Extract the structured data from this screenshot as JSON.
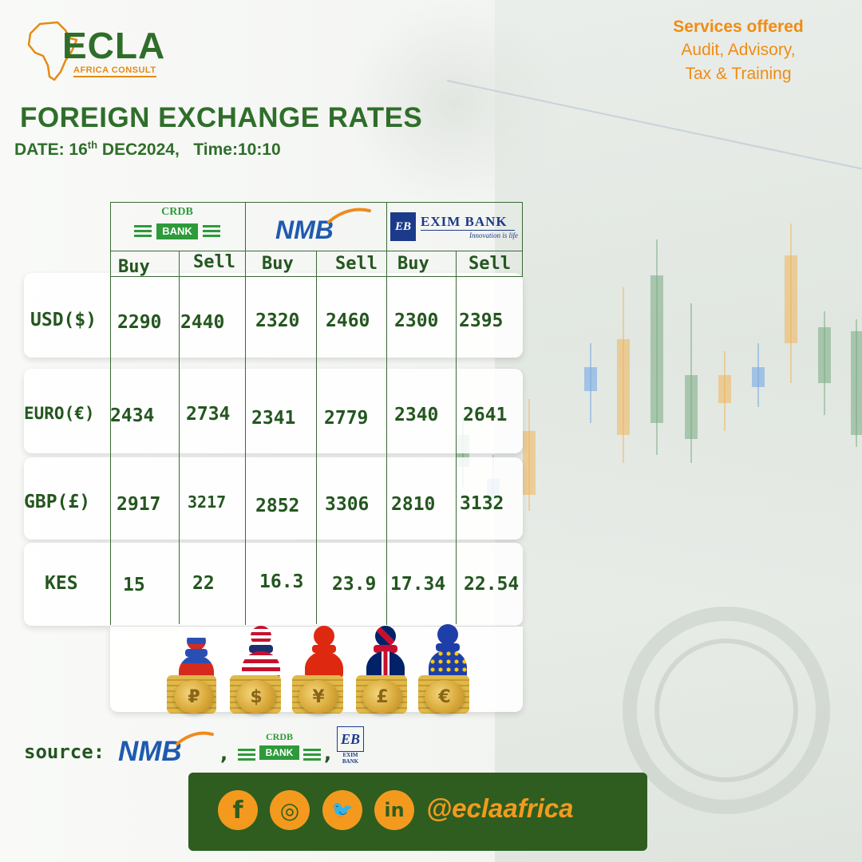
{
  "brand": {
    "logo_text": "ECLA",
    "logo_sub": "AFRICA CONSULT",
    "colors": {
      "green": "#2f6e2a",
      "orange": "#ef8c14"
    }
  },
  "services": {
    "title": "Services offered",
    "line1": "Audit, Advisory,",
    "line2": "Tax & Training"
  },
  "heading": {
    "title": "FOREIGN EXCHANGE RATES",
    "date_prefix": "DATE: 16",
    "date_sup": "th",
    "date_rest": " DEC2024,",
    "time": "Time:10:10"
  },
  "banks": {
    "crdb": {
      "top": "CRDB",
      "mid": "BANK"
    },
    "nmb": {
      "name": "NMB"
    },
    "exim": {
      "mark": "EB",
      "name": "EXIM BANK",
      "tagline": "Innovation is life",
      "small_name": "EXIM BANK"
    }
  },
  "columns": {
    "buy": "Buy",
    "sell": "Sell"
  },
  "rates": [
    {
      "currency": "USD($)",
      "values": [
        "2290",
        "2440",
        "2320",
        "2460",
        "2300",
        "2395"
      ]
    },
    {
      "currency": "EURO(€)",
      "values": [
        "2434",
        "2734",
        "2341",
        "2779",
        "2340",
        "2641"
      ]
    },
    {
      "currency": "GBP(£)",
      "values": [
        "2917",
        "3217",
        "2852",
        "3306",
        "2810",
        "3132"
      ]
    },
    {
      "currency": "KES",
      "values": [
        "15",
        "22",
        "16.3",
        "23.9",
        "17.34",
        "22.54"
      ]
    }
  ],
  "coins": [
    "₽",
    "$",
    "¥",
    "£",
    "€"
  ],
  "source": {
    "label": "source:",
    "nmb": "NMB",
    "sep": ","
  },
  "social": {
    "facebook": "f",
    "instagram": "◎",
    "twitter": "🐦",
    "linkedin": "in",
    "handle": "@eclaafrica"
  }
}
